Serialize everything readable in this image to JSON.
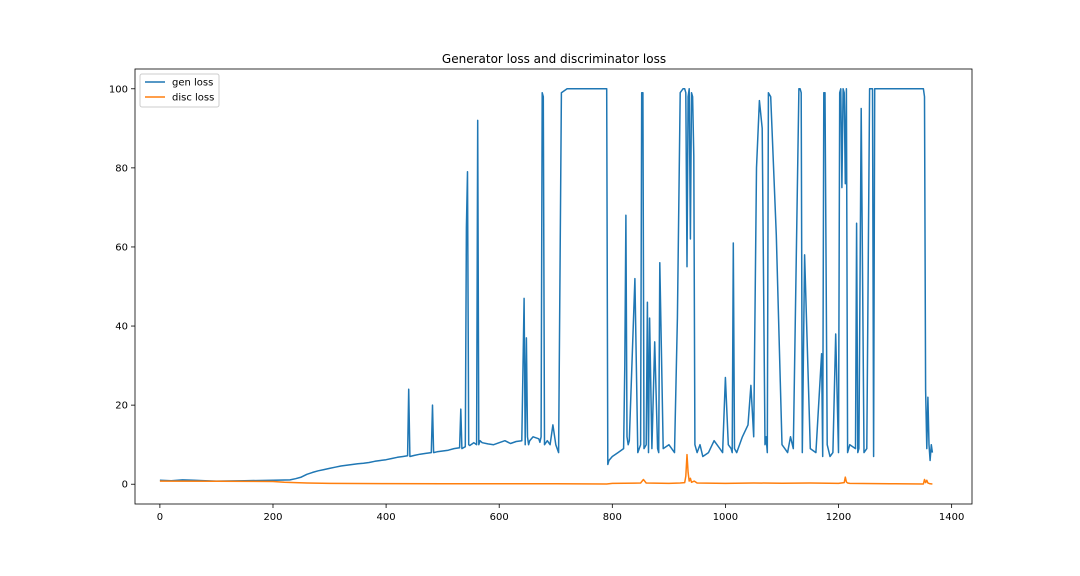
{
  "chart_data": {
    "type": "line",
    "title": "Generator loss and discriminator loss",
    "xlabel": "",
    "ylabel": "",
    "xlim": [
      -44,
      1436
    ],
    "ylim": [
      -5,
      105
    ],
    "xticks": [
      0,
      200,
      400,
      600,
      800,
      1000,
      1200,
      1400
    ],
    "yticks": [
      0,
      20,
      40,
      60,
      80,
      100
    ],
    "grid": false,
    "legend": "top-left",
    "series": [
      {
        "name": "gen loss",
        "color": "#1f77b4",
        "x": [
          0,
          20,
          40,
          60,
          80,
          100,
          150,
          200,
          230,
          240,
          250,
          260,
          270,
          280,
          290,
          300,
          310,
          320,
          330,
          340,
          350,
          360,
          370,
          380,
          390,
          400,
          410,
          420,
          430,
          438,
          440,
          442,
          450,
          460,
          470,
          480,
          482,
          484,
          490,
          500,
          510,
          520,
          530,
          532,
          534,
          540,
          542,
          544,
          546,
          548,
          550,
          555,
          560,
          562,
          564,
          566,
          570,
          580,
          590,
          600,
          610,
          620,
          630,
          640,
          644,
          646,
          648,
          650,
          652,
          654,
          660,
          670,
          672,
          674,
          676,
          678,
          680,
          685,
          690,
          695,
          700,
          705,
          710,
          720,
          760,
          790,
          792,
          794,
          800,
          810,
          820,
          822,
          824,
          826,
          828,
          830,
          840,
          845,
          850,
          852,
          854,
          856,
          860,
          862,
          864,
          866,
          870,
          875,
          880,
          882,
          884,
          890,
          900,
          910,
          915,
          920,
          925,
          928,
          930,
          932,
          934,
          936,
          938,
          940,
          942,
          944,
          946,
          948,
          950,
          955,
          960,
          970,
          980,
          990,
          995,
          1000,
          1005,
          1010,
          1012,
          1014,
          1016,
          1020,
          1030,
          1040,
          1045,
          1050,
          1055,
          1060,
          1065,
          1070,
          1072,
          1074,
          1076,
          1080,
          1090,
          1100,
          1105,
          1110,
          1115,
          1120,
          1130,
          1132,
          1134,
          1136,
          1140,
          1150,
          1160,
          1170,
          1172,
          1174,
          1176,
          1180,
          1185,
          1190,
          1195,
          1200,
          1202,
          1204,
          1206,
          1208,
          1210,
          1212,
          1214,
          1216,
          1220,
          1230,
          1232,
          1234,
          1236,
          1240,
          1245,
          1250,
          1255,
          1260,
          1262,
          1264,
          1300,
          1340,
          1350,
          1352,
          1354,
          1356,
          1358,
          1360,
          1362,
          1364,
          1366
        ],
        "y": [
          1,
          0.9,
          1.1,
          1,
          0.9,
          0.8,
          0.9,
          1,
          1.1,
          1.4,
          1.8,
          2.5,
          3,
          3.4,
          3.7,
          4,
          4.3,
          4.6,
          4.8,
          5,
          5.2,
          5.3,
          5.5,
          5.8,
          6,
          6.2,
          6.5,
          6.8,
          7,
          7.2,
          24,
          7,
          7.3,
          7.6,
          7.8,
          8,
          20,
          8,
          8.2,
          8.4,
          8.6,
          9,
          9.2,
          19,
          9,
          9.5,
          65,
          79,
          10,
          9.8,
          10,
          10.5,
          10,
          92,
          10,
          11,
          10.5,
          10.2,
          10,
          10.5,
          11,
          10.3,
          10.8,
          11,
          47,
          10,
          37,
          12,
          10,
          11,
          12,
          11.5,
          10.6,
          12,
          99,
          98,
          10,
          11,
          10,
          15,
          10,
          8,
          99,
          100,
          100,
          100,
          5,
          6,
          7,
          8,
          9,
          30,
          68,
          12,
          10,
          11,
          52,
          8,
          10,
          99,
          99,
          9,
          10,
          46,
          8,
          42,
          9,
          36,
          9,
          8,
          56,
          9,
          10,
          8,
          42,
          99,
          100,
          100,
          99,
          55,
          98,
          100,
          62,
          99,
          98,
          83,
          10,
          9,
          8,
          10,
          7,
          8,
          11,
          9,
          8,
          27,
          10,
          9,
          8,
          61,
          9,
          8,
          12,
          15,
          25,
          12,
          80,
          97,
          90,
          10,
          12,
          8,
          99,
          98,
          63,
          10,
          9,
          8,
          12,
          9,
          100,
          100,
          99,
          8,
          58,
          9,
          8,
          33,
          7,
          99,
          99,
          10,
          7,
          8,
          38,
          8,
          99,
          100,
          75,
          100,
          99,
          76,
          100,
          8,
          10,
          9,
          66,
          8,
          9,
          95,
          8,
          9,
          100,
          100,
          7,
          100,
          100,
          100,
          100,
          98,
          24,
          9,
          22,
          10,
          6,
          10,
          8
        ]
      },
      {
        "name": "disc loss",
        "color": "#ff7f0e",
        "x": [
          0,
          100,
          200,
          220,
          240,
          260,
          300,
          400,
          500,
          600,
          700,
          790,
          800,
          850,
          855,
          860,
          900,
          920,
          928,
          930,
          932,
          934,
          936,
          938,
          940,
          945,
          950,
          1000,
          1050,
          1100,
          1150,
          1200,
          1210,
          1212,
          1214,
          1216,
          1220,
          1300,
          1350,
          1352,
          1354,
          1356,
          1358,
          1360,
          1362,
          1366
        ],
        "y": [
          0.8,
          0.75,
          0.7,
          0.5,
          0.4,
          0.3,
          0.2,
          0.15,
          0.1,
          0.1,
          0.1,
          0.05,
          0.2,
          0.3,
          1.2,
          0.3,
          0.2,
          0.3,
          0.4,
          2,
          7.5,
          3,
          0.8,
          1.5,
          0.5,
          0.8,
          0.3,
          0.2,
          0.3,
          0.25,
          0.3,
          0.2,
          0.4,
          1.8,
          0.6,
          0.3,
          0.2,
          0.1,
          0.05,
          1.2,
          0.4,
          1,
          0.3,
          0.2,
          0.1,
          0.05
        ]
      }
    ]
  }
}
